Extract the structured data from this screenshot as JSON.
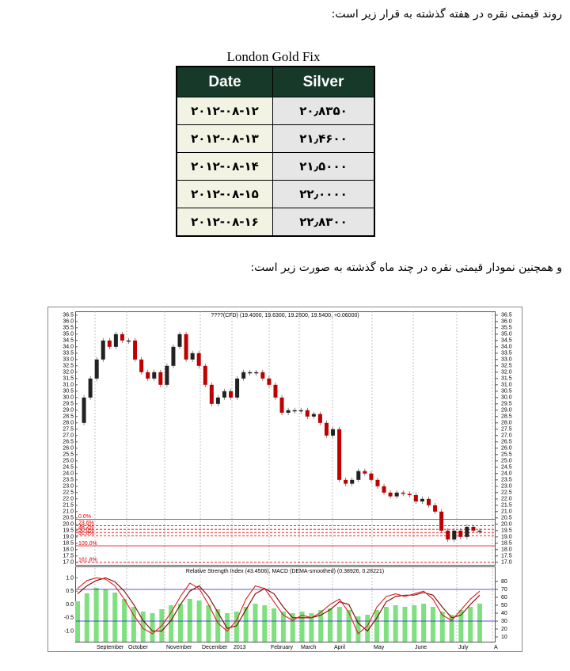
{
  "paragraphs": [
    "روند قیمتی نقره در هفته گذشته به قرار زیر است:",
    "و همچنین نمودار قیمتی نقره در چند ماه گذشته به صورت زیر است:"
  ],
  "table": {
    "caption": "London Gold Fix",
    "header": [
      "Date",
      "Silver"
    ],
    "rows": [
      [
        "۲۰۱۲-۰۸-۱۲",
        "۲۰٫۸۳۵۰"
      ],
      [
        "۲۰۱۲-۰۸-۱۳",
        "۲۱٫۴۶۰۰"
      ],
      [
        "۲۰۱۲-۰۸-۱۴",
        "۲۱٫۵۰۰۰"
      ],
      [
        "۲۰۱۲-۰۸-۱۵",
        "۲۲٫۰۰۰۰"
      ],
      [
        "۲۰۱۲-۰۸-۱۶",
        "۲۲٫۸۳۰۰"
      ]
    ]
  },
  "chart": {
    "title": "????(CFD) (19.4000, 19.6300, 19.2600, 19.5400, +0.06000)",
    "months": [
      "September",
      "October",
      "November",
      "December",
      "2013",
      "February",
      "March",
      "April",
      "May",
      "June",
      "July",
      "A"
    ],
    "price": {
      "type": "candlestick",
      "up_color": "#222222",
      "down_color": "#c00000",
      "values": [
        28,
        30,
        31.5,
        33,
        34.5,
        34,
        35,
        34.5,
        34.5,
        33,
        32,
        31.5,
        32,
        31,
        32.5,
        34,
        35,
        33,
        33.5,
        32.5,
        31,
        29.5,
        30,
        30.5,
        30,
        31.5,
        32,
        32,
        32,
        31.5,
        31,
        30,
        28.8,
        29,
        29,
        29,
        28.5,
        28.7,
        28,
        27,
        27.5,
        23.5,
        23.2,
        23.5,
        24.2,
        24,
        23.5,
        23,
        22.5,
        22.2,
        22.5,
        22.4,
        22.3,
        21.8,
        22,
        21.5,
        21,
        19.5,
        18.8,
        19.5,
        19,
        19.8,
        19.5,
        19.5
      ],
      "ylim": [
        16.8,
        36.8
      ],
      "yticks": [
        {
          "value": 17,
          "label": "17.0"
        },
        17.5,
        {
          "value": 18,
          "label": "18.0"
        },
        18.5,
        {
          "value": 19,
          "label": "19.0"
        },
        19.5,
        {
          "value": 20,
          "label": "20.0"
        },
        20.5,
        {
          "value": 21,
          "label": "21.0"
        },
        21.5,
        {
          "value": 22,
          "label": "22.0"
        },
        22.5,
        {
          "value": 23,
          "label": "23.0"
        },
        23.5,
        {
          "value": 24,
          "label": "24.0"
        },
        24.5,
        {
          "value": 25,
          "label": "25.0"
        },
        25.5,
        {
          "value": 26,
          "label": "26.0"
        },
        26.5,
        {
          "value": 27,
          "label": "27.0"
        },
        27.5,
        {
          "value": 28,
          "label": "28.0"
        },
        28.5,
        {
          "value": 29,
          "label": "29.0"
        },
        29.5,
        {
          "value": 30,
          "label": "30.0"
        },
        30.5,
        {
          "value": 31,
          "label": "31.0"
        },
        31.5,
        {
          "value": 32,
          "label": "32.0"
        },
        32.5,
        {
          "value": 33,
          "label": "33.0"
        },
        33.5,
        {
          "value": 34,
          "label": "34.0"
        },
        34.5,
        {
          "value": 35,
          "label": "35.0"
        },
        35.5,
        {
          "value": 36,
          "label": "36.0"
        },
        36.5
      ]
    },
    "fib_color": "#e00000",
    "fib_levels": [
      {
        "label": "0.0%",
        "value": 20.4
      },
      {
        "label": "23.6%",
        "value": 19.9
      },
      {
        "label": "38.2%",
        "value": 19.6
      },
      {
        "label": "50.0%",
        "value": 19.35
      },
      {
        "label": "61.8%",
        "value": 19.1
      },
      {
        "label": "100.0%",
        "value": 18.3
      },
      {
        "label": "161.8%",
        "value": 17.0
      }
    ],
    "indicator": {
      "title": "Relative Strength Index (43.4506), MACD (DEMA-smoothed) (0.38926, 0.28221)",
      "ylim": [
        -1.4,
        1.4
      ],
      "yticks": [
        {
          "value": 1,
          "label": "1.0"
        },
        {
          "value": 0.5,
          "label": "0.5"
        },
        {
          "value": 0,
          "label": "0.0"
        },
        {
          "value": -0.5,
          "label": "-0.5"
        },
        {
          "value": -1,
          "label": "-1.0"
        }
      ],
      "y2lim": [
        4,
        98
      ],
      "y2ticks": [
        80,
        70,
        60,
        50,
        40,
        30,
        20,
        10
      ],
      "bands": [
        70,
        30
      ],
      "band_color": "#2020c0",
      "rsi": {
        "color": "#7fe07f",
        "values": [
          55,
          65,
          72,
          70,
          66,
          58,
          48,
          42,
          40,
          45,
          50,
          52,
          58,
          56,
          50,
          45,
          40,
          42,
          48,
          52,
          50,
          46,
          42,
          40,
          42,
          40,
          44,
          46,
          48,
          44,
          36,
          38,
          44,
          48,
          50,
          48,
          50,
          52,
          48,
          42,
          38,
          44,
          48,
          52
        ]
      },
      "macd": {
        "color": "#e02020",
        "values": [
          0.6,
          0.9,
          1.0,
          0.95,
          0.7,
          0.2,
          -0.4,
          -0.9,
          -1.1,
          -0.8,
          -0.3,
          0.3,
          0.8,
          0.6,
          0,
          -0.7,
          -1.0,
          -0.6,
          0.2,
          0.7,
          0.6,
          0.1,
          -0.4,
          -0.6,
          -0.4,
          -0.5,
          -0.3,
          0,
          0.2,
          -0.3,
          -1.1,
          -0.8,
          -0.1,
          0.3,
          0.4,
          0.3,
          0.4,
          0.5,
          0.2,
          -0.4,
          -0.6,
          -0.2,
          0.2,
          0.5
        ]
      },
      "signal": {
        "color": "#800000",
        "values": [
          0.4,
          0.7,
          0.9,
          1.0,
          0.85,
          0.5,
          0,
          -0.6,
          -1.0,
          -1.0,
          -0.6,
          0,
          0.5,
          0.7,
          0.3,
          -0.3,
          -0.9,
          -0.8,
          -0.2,
          0.4,
          0.6,
          0.4,
          -0.1,
          -0.5,
          -0.5,
          -0.5,
          -0.4,
          -0.2,
          0.1,
          0,
          -0.7,
          -1.0,
          -0.5,
          0.1,
          0.3,
          0.35,
          0.35,
          0.45,
          0.35,
          -0.1,
          -0.5,
          -0.4,
          0,
          0.35
        ]
      }
    }
  }
}
